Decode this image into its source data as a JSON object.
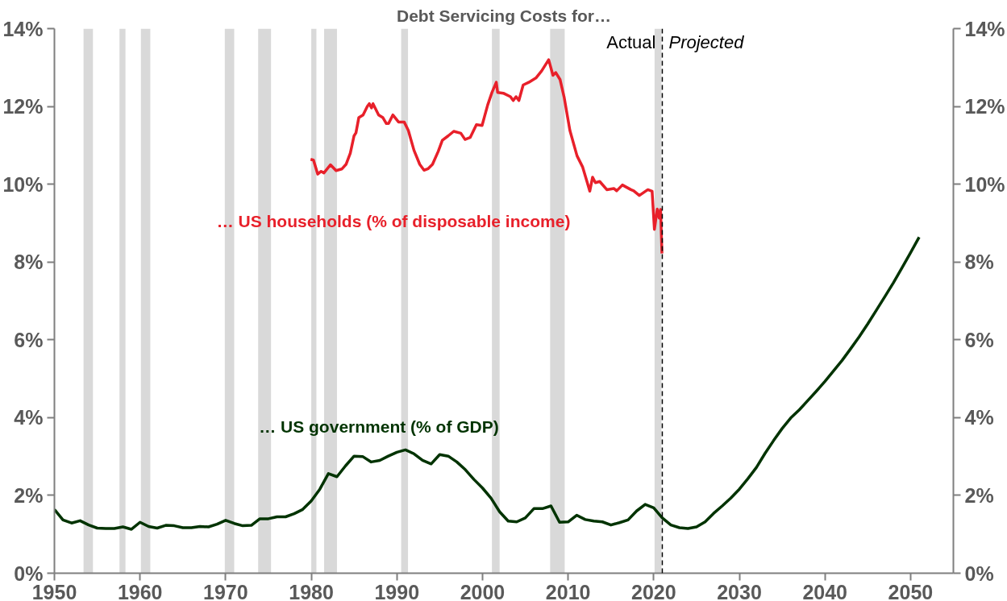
{
  "chart_data": {
    "type": "line",
    "title": "Debt Servicing Costs for…",
    "xlim": [
      1950,
      2055
    ],
    "xticks": [
      1950,
      1960,
      1970,
      1980,
      1990,
      2000,
      2010,
      2020,
      2030,
      2040,
      2050
    ],
    "ylim": [
      0,
      14
    ],
    "yticks": [
      {
        "value": 0,
        "label": "0%"
      },
      {
        "value": 2,
        "label": "2%"
      },
      {
        "value": 4,
        "label": "4%"
      },
      {
        "value": 6,
        "label": "6%"
      },
      {
        "value": 8,
        "label": "8%"
      },
      {
        "value": 10,
        "label": "10%"
      },
      {
        "value": 12,
        "label": "12%"
      },
      {
        "value": 14,
        "label": "14%"
      }
    ],
    "y2lim": [
      0,
      14
    ],
    "y2ticks": [
      {
        "value": 0,
        "label": "0%"
      },
      {
        "value": 2,
        "label": "2%"
      },
      {
        "value": 4,
        "label": "4%"
      },
      {
        "value": 6,
        "label": "6%"
      },
      {
        "value": 8,
        "label": "8%"
      },
      {
        "value": 10,
        "label": "10%"
      },
      {
        "value": 12,
        "label": "12%"
      },
      {
        "value": 14,
        "label": "14%"
      }
    ],
    "grid": false,
    "marker": "none",
    "line_style": "solid",
    "series": [
      {
        "name": "… US households (% of disposable income)",
        "color": "#e8202a",
        "x": [
          1979.92,
          1980.26,
          1980.75,
          1981.15,
          1981.48,
          1982.24,
          1982.9,
          1983.56,
          1984.06,
          1984.56,
          1984.99,
          1985.22,
          1985.55,
          1986.05,
          1986.55,
          1986.78,
          1987.04,
          1987.21,
          1987.87,
          1988.37,
          1988.77,
          1989.03,
          1989.53,
          1990.19,
          1990.85,
          1991.34,
          1992.0,
          1992.67,
          1993.17,
          1993.66,
          1994.16,
          1994.82,
          1995.31,
          1995.98,
          1996.64,
          1997.47,
          1997.96,
          1998.56,
          1999.29,
          1999.95,
          2000.61,
          2001.11,
          2001.61,
          2001.77,
          2002.43,
          2003.26,
          2003.59,
          2003.92,
          2004.25,
          2004.75,
          2005.41,
          2006.24,
          2006.9,
          2007.73,
          2008.23,
          2008.56,
          2009.06,
          2009.55,
          2010.21,
          2011.04,
          2011.7,
          2012.2,
          2012.53,
          2012.86,
          2013.19,
          2013.69,
          2014.52,
          2015.34,
          2015.67,
          2016.34,
          2017.33,
          2017.66,
          2018.32,
          2019.31,
          2019.81,
          2020.08,
          2020.41,
          2020.64,
          2020.8,
          2020.96
        ],
        "values": [
          10.64,
          10.62,
          10.26,
          10.33,
          10.29,
          10.5,
          10.35,
          10.39,
          10.51,
          10.8,
          11.24,
          11.32,
          11.71,
          11.78,
          12.0,
          12.07,
          11.96,
          12.07,
          11.78,
          11.71,
          11.56,
          11.56,
          11.78,
          11.6,
          11.6,
          11.38,
          10.87,
          10.51,
          10.36,
          10.4,
          10.51,
          10.84,
          11.13,
          11.24,
          11.36,
          11.31,
          11.15,
          11.2,
          11.53,
          11.51,
          12.04,
          12.36,
          12.62,
          12.36,
          12.34,
          12.25,
          12.15,
          12.25,
          12.15,
          12.55,
          12.62,
          12.73,
          12.91,
          13.2,
          12.8,
          12.87,
          12.69,
          12.22,
          11.38,
          10.73,
          10.44,
          10.07,
          9.82,
          10.18,
          10.04,
          10.07,
          9.86,
          9.89,
          9.83,
          9.98,
          9.86,
          9.83,
          9.71,
          9.86,
          9.82,
          8.84,
          9.36,
          9.13,
          9.35,
          8.22
        ]
      },
      {
        "name": "… US government (% of GDP)",
        "color": "#003300",
        "x": [
          1950,
          1951,
          1952,
          1953,
          1954,
          1955,
          1956,
          1957,
          1958,
          1959,
          1960,
          1961,
          1962,
          1963,
          1964,
          1965,
          1966,
          1967,
          1968,
          1969,
          1970,
          1971,
          1972,
          1973,
          1974,
          1975,
          1976,
          1977,
          1978,
          1979,
          1980,
          1981,
          1982,
          1983,
          1984,
          1985,
          1986,
          1987,
          1988,
          1989,
          1990,
          1991,
          1992,
          1993,
          1994,
          1995,
          1996,
          1997,
          1998,
          1999,
          2000,
          2001,
          2002,
          2003,
          2004,
          2005,
          2006,
          2007,
          2008,
          2009,
          2010,
          2011,
          2012,
          2013,
          2014,
          2015,
          2016,
          2017,
          2018,
          2019,
          2020,
          2021,
          2022,
          2023,
          2024,
          2025,
          2026,
          2027,
          2028,
          2029,
          2030,
          2031,
          2032,
          2033,
          2034,
          2035,
          2036,
          2037,
          2038,
          2039,
          2040,
          2041,
          2042,
          2043,
          2044,
          2045,
          2046,
          2047,
          2048,
          2049,
          2050,
          2051
        ],
        "values": [
          1.64,
          1.37,
          1.29,
          1.35,
          1.24,
          1.16,
          1.15,
          1.15,
          1.19,
          1.13,
          1.31,
          1.2,
          1.16,
          1.23,
          1.22,
          1.17,
          1.17,
          1.2,
          1.19,
          1.26,
          1.36,
          1.28,
          1.22,
          1.23,
          1.4,
          1.4,
          1.45,
          1.45,
          1.53,
          1.64,
          1.86,
          2.16,
          2.56,
          2.48,
          2.76,
          3.01,
          3.0,
          2.86,
          2.9,
          3.01,
          3.11,
          3.17,
          3.07,
          2.9,
          2.81,
          3.05,
          3.01,
          2.86,
          2.66,
          2.41,
          2.19,
          1.93,
          1.58,
          1.34,
          1.32,
          1.42,
          1.66,
          1.66,
          1.73,
          1.31,
          1.32,
          1.49,
          1.38,
          1.34,
          1.32,
          1.24,
          1.3,
          1.37,
          1.6,
          1.77,
          1.68,
          1.42,
          1.24,
          1.17,
          1.15,
          1.19,
          1.32,
          1.54,
          1.73,
          1.93,
          2.16,
          2.43,
          2.72,
          3.08,
          3.41,
          3.72,
          3.99,
          4.2,
          4.44,
          4.68,
          4.93,
          5.2,
          5.47,
          5.77,
          6.08,
          6.41,
          6.76,
          7.11,
          7.47,
          7.85,
          8.24,
          8.64
        ]
      }
    ],
    "bands": [
      {
        "axis": "x",
        "from": 1953.4,
        "to": 1954.5,
        "label": null,
        "color": "#d9d9d9"
      },
      {
        "axis": "x",
        "from": 1957.6,
        "to": 1958.3,
        "label": null,
        "color": "#d9d9d9"
      },
      {
        "axis": "x",
        "from": 1960.1,
        "to": 1961.2,
        "label": null,
        "color": "#d9d9d9"
      },
      {
        "axis": "x",
        "from": 1969.9,
        "to": 1971.0,
        "label": null,
        "color": "#d9d9d9"
      },
      {
        "axis": "x",
        "from": 1973.8,
        "to": 1975.3,
        "label": null,
        "color": "#d9d9d9"
      },
      {
        "axis": "x",
        "from": 1980.0,
        "to": 1980.6,
        "label": null,
        "color": "#d9d9d9"
      },
      {
        "axis": "x",
        "from": 1981.5,
        "to": 1983.0,
        "label": null,
        "color": "#d9d9d9"
      },
      {
        "axis": "x",
        "from": 1990.5,
        "to": 1991.3,
        "label": null,
        "color": "#d9d9d9"
      },
      {
        "axis": "x",
        "from": 2001.1,
        "to": 2002.0,
        "label": null,
        "color": "#d9d9d9"
      },
      {
        "axis": "x",
        "from": 2007.9,
        "to": 2009.6,
        "label": null,
        "color": "#d9d9d9"
      },
      {
        "axis": "x",
        "from": 2020.1,
        "to": 2020.9,
        "label": null,
        "color": "#d9d9d9"
      }
    ],
    "ref_lines": [
      {
        "axis": "x",
        "value": 2021.0,
        "label": null,
        "color": "#000000",
        "line_style": "dashed"
      }
    ],
    "annotations": [
      "Actual",
      "Projected"
    ]
  }
}
